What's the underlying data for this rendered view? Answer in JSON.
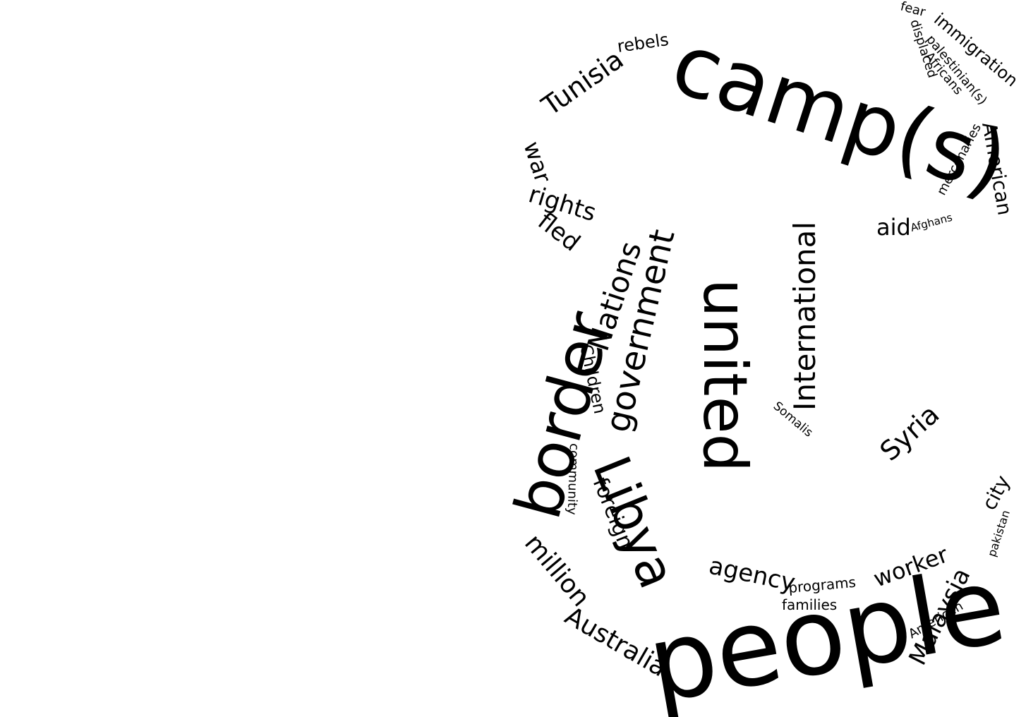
{
  "words": {
    "camps": "camp(s)",
    "people": "people",
    "united": "united",
    "border": "border",
    "libya": "Libya",
    "government": "government",
    "nations": "Nations",
    "international": "International",
    "tunisia": "Tunisia",
    "australia": "Australia",
    "million": "million",
    "syria": "Syria",
    "malaysia": "Malaysia",
    "american": "American",
    "agency": "agency",
    "worker": "worker",
    "rights": "rights",
    "fled": "fled",
    "war": "war",
    "rebels": "rebels",
    "immigration": "immigration",
    "palestinians": "palestinian(s)",
    "africans": "Africans",
    "displaced": "displaced",
    "fear": "fear",
    "mercenaries": "mercenaries",
    "aid": "aid",
    "afghans": "Afghans",
    "children": "Children",
    "community": "community",
    "foreign": "foreign",
    "somalis": "Somalis",
    "programs": "programs",
    "families": "families",
    "city": "city",
    "pakistan": "pakistan",
    "american_small": "American"
  }
}
